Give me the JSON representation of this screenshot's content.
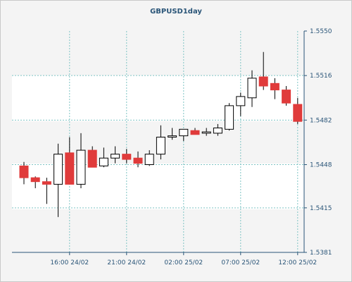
{
  "chart_data": {
    "type": "candlestick",
    "title": "GBPUSD1day",
    "xlabel": "",
    "ylabel": "",
    "ylim": [
      1.5381,
      1.555
    ],
    "y_ticks": [
      "1.5550",
      "1.5516",
      "1.5482",
      "1.5448",
      "1.5415",
      "1.5381"
    ],
    "x_ticks": [
      "16:00 24/02",
      "21:00 24/02",
      "02:00 25/02",
      "07:00 25/02",
      "12:00 25/02"
    ],
    "grid": true,
    "colors": {
      "up": "#ffffff",
      "down": "#e03b3b",
      "outline": "#000000",
      "grid": "#7fc4c4"
    },
    "candles": [
      {
        "o": 1.5447,
        "h": 1.545,
        "l": 1.5433,
        "c": 1.5438
      },
      {
        "o": 1.5438,
        "h": 1.5439,
        "l": 1.543,
        "c": 1.5435
      },
      {
        "o": 1.5435,
        "h": 1.5438,
        "l": 1.5418,
        "c": 1.5433
      },
      {
        "o": 1.5433,
        "h": 1.5464,
        "l": 1.5408,
        "c": 1.5456
      },
      {
        "o": 1.5457,
        "h": 1.5469,
        "l": 1.5433,
        "c": 1.5433
      },
      {
        "o": 1.5433,
        "h": 1.5472,
        "l": 1.543,
        "c": 1.5459
      },
      {
        "o": 1.5459,
        "h": 1.5462,
        "l": 1.5446,
        "c": 1.5446
      },
      {
        "o": 1.5447,
        "h": 1.5461,
        "l": 1.5446,
        "c": 1.5453
      },
      {
        "o": 1.5453,
        "h": 1.5462,
        "l": 1.5449,
        "c": 1.5456
      },
      {
        "o": 1.5456,
        "h": 1.546,
        "l": 1.5449,
        "c": 1.5452
      },
      {
        "o": 1.5453,
        "h": 1.5458,
        "l": 1.5446,
        "c": 1.5449
      },
      {
        "o": 1.5448,
        "h": 1.5459,
        "l": 1.5447,
        "c": 1.5456
      },
      {
        "o": 1.5456,
        "h": 1.5478,
        "l": 1.5452,
        "c": 1.5469
      },
      {
        "o": 1.5469,
        "h": 1.5476,
        "l": 1.5467,
        "c": 1.547
      },
      {
        "o": 1.547,
        "h": 1.5475,
        "l": 1.5466,
        "c": 1.5475
      },
      {
        "o": 1.5474,
        "h": 1.5476,
        "l": 1.5471,
        "c": 1.5471
      },
      {
        "o": 1.5472,
        "h": 1.5476,
        "l": 1.547,
        "c": 1.5473
      },
      {
        "o": 1.5472,
        "h": 1.5479,
        "l": 1.547,
        "c": 1.5476
      },
      {
        "o": 1.5475,
        "h": 1.5495,
        "l": 1.5474,
        "c": 1.5493
      },
      {
        "o": 1.5493,
        "h": 1.5503,
        "l": 1.5485,
        "c": 1.55
      },
      {
        "o": 1.5499,
        "h": 1.552,
        "l": 1.5492,
        "c": 1.5514
      },
      {
        "o": 1.5515,
        "h": 1.5534,
        "l": 1.5505,
        "c": 1.5508
      },
      {
        "o": 1.551,
        "h": 1.5514,
        "l": 1.5498,
        "c": 1.5505
      },
      {
        "o": 1.5505,
        "h": 1.5508,
        "l": 1.5493,
        "c": 1.5495
      },
      {
        "o": 1.5494,
        "h": 1.5499,
        "l": 1.5479,
        "c": 1.5481
      }
    ]
  }
}
